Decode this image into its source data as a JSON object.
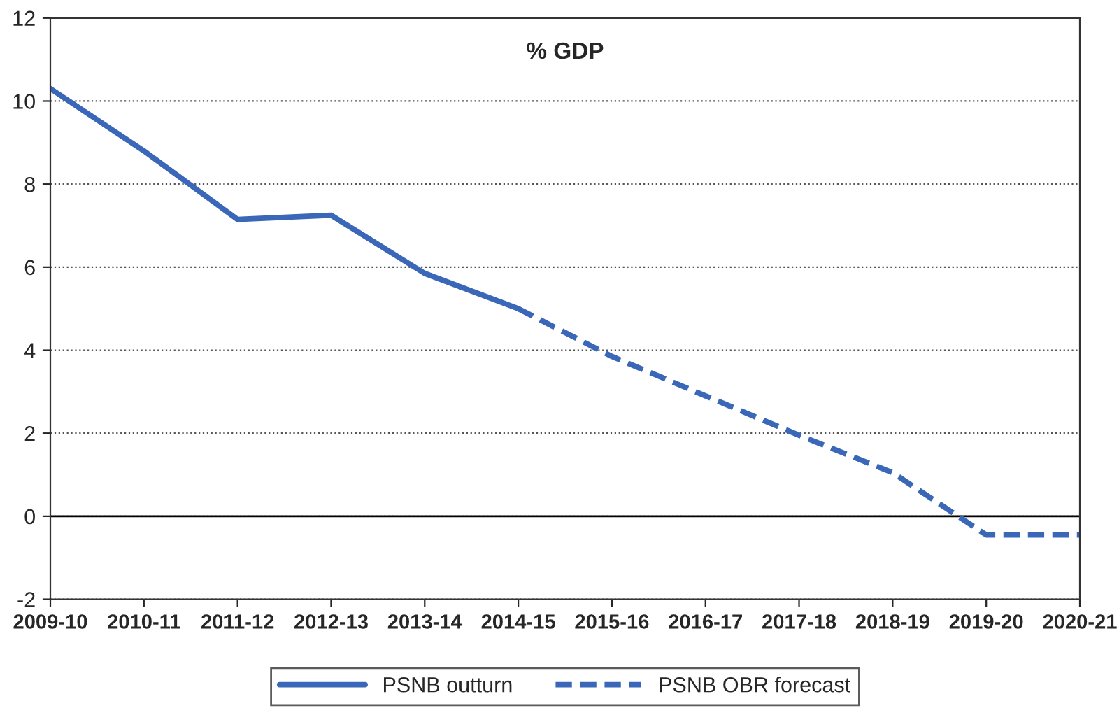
{
  "chart_data": {
    "type": "line",
    "title": "% GDP",
    "categories": [
      "2009-10",
      "2010-11",
      "2011-12",
      "2012-13",
      "2013-14",
      "2014-15",
      "2015-16",
      "2016-17",
      "2017-18",
      "2018-19",
      "2019-20",
      "2020-21"
    ],
    "series": [
      {
        "name": "PSNB outturn",
        "color": "#3a67b8",
        "line_style": "solid",
        "values": [
          10.3,
          8.8,
          7.15,
          7.25,
          5.85,
          5.0,
          null,
          null,
          null,
          null,
          null,
          null
        ]
      },
      {
        "name": "PSNB OBR forecast",
        "color": "#3a67b8",
        "line_style": "dashed",
        "values": [
          null,
          null,
          null,
          null,
          null,
          5.0,
          3.85,
          2.9,
          1.95,
          1.05,
          -0.45,
          -0.45
        ]
      }
    ],
    "ylim": [
      -2,
      12
    ],
    "yticks": [
      -2,
      0,
      2,
      4,
      6,
      8,
      10,
      12
    ],
    "ref_lines": [
      {
        "axis": "y",
        "value": 0,
        "color": "#000000",
        "line_style": "solid"
      }
    ],
    "grid": "y",
    "legend": "bottom",
    "marker": "none"
  }
}
